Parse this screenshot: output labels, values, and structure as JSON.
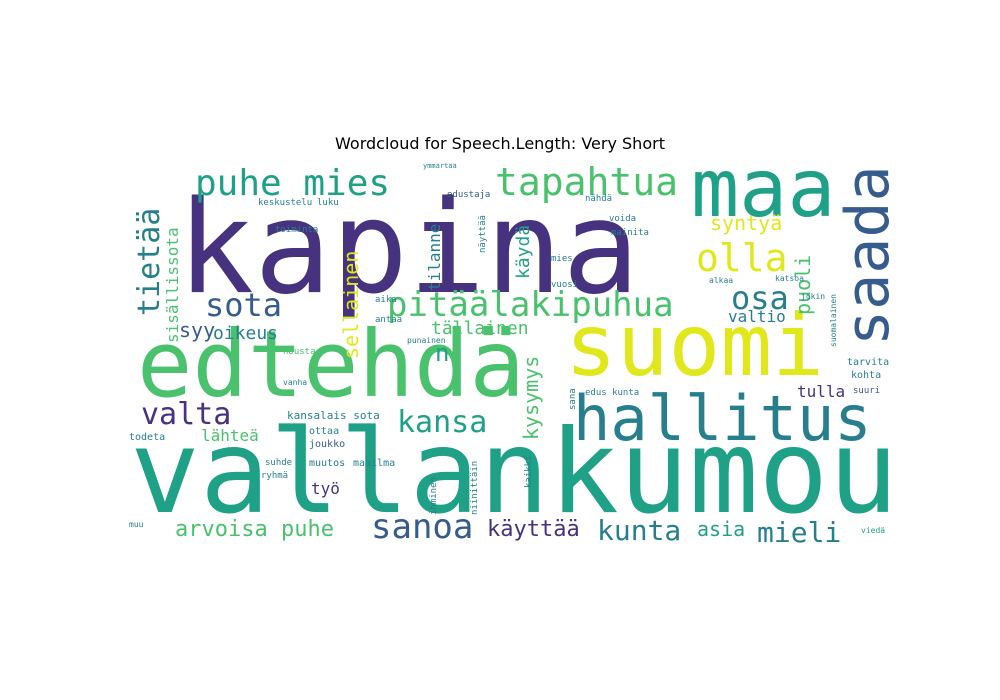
{
  "title": "Wordcloud for Speech.Length: Very Short",
  "palette": {
    "dark_purple": "#46327e",
    "slate_blue": "#365c8d",
    "teal": "#277f8e",
    "sea_green": "#1fa187",
    "green": "#4ac16d",
    "lime": "#a0da39",
    "yellow": "#e0e81c"
  },
  "words": [
    {
      "text": "kapina"
    },
    {
      "text": "vallankumou"
    },
    {
      "text": "edtehdä"
    },
    {
      "text": "suomi"
    },
    {
      "text": "maa"
    },
    {
      "text": "saada"
    },
    {
      "text": "hallitus"
    },
    {
      "text": "puhe mies"
    },
    {
      "text": "tapahtua"
    },
    {
      "text": "olla"
    },
    {
      "text": "pitäälakipuhua"
    },
    {
      "text": "sota"
    },
    {
      "text": "osa"
    },
    {
      "text": "tietää"
    },
    {
      "text": "kansa"
    },
    {
      "text": "valta"
    },
    {
      "text": "sanoa"
    },
    {
      "text": "kunta"
    },
    {
      "text": "mieli"
    },
    {
      "text": "käyttää"
    },
    {
      "text": "arvoisa puhe"
    },
    {
      "text": "asia"
    },
    {
      "text": "syntyä"
    },
    {
      "text": "puoli"
    },
    {
      "text": "valtio"
    },
    {
      "text": "sisällissota"
    },
    {
      "text": "sellainen"
    },
    {
      "text": "tällainen"
    },
    {
      "text": "kysymys"
    },
    {
      "text": "käydä"
    },
    {
      "text": "tilanne"
    },
    {
      "text": "oikeus"
    },
    {
      "text": "syy"
    },
    {
      "text": "n"
    },
    {
      "text": "lähteä"
    },
    {
      "text": "työ"
    },
    {
      "text": "tulla"
    },
    {
      "text": "kansalais sota"
    },
    {
      "text": "joukko"
    },
    {
      "text": "muutos"
    },
    {
      "text": "maailma"
    },
    {
      "text": "ryhmä"
    },
    {
      "text": "suhde"
    },
    {
      "text": "todeta"
    },
    {
      "text": "kohta"
    },
    {
      "text": "tarvita"
    },
    {
      "text": "suuri"
    },
    {
      "text": "edus kunta"
    },
    {
      "text": "sana"
    },
    {
      "text": "ottaa"
    },
    {
      "text": "vuosi"
    },
    {
      "text": "mies"
    },
    {
      "text": "mainita"
    },
    {
      "text": "edustaja"
    },
    {
      "text": "nähdä"
    },
    {
      "text": "voida"
    },
    {
      "text": "näyttää"
    },
    {
      "text": "toiminta"
    },
    {
      "text": "keskustelu"
    },
    {
      "text": "luku"
    },
    {
      "text": "aika"
    },
    {
      "text": "antaa"
    },
    {
      "text": "nousta"
    },
    {
      "text": "punainen"
    },
    {
      "text": "vanha"
    },
    {
      "text": "ihminen"
    },
    {
      "text": "niinittäin"
    },
    {
      "text": "kaikki"
    },
    {
      "text": "muu"
    },
    {
      "text": "viedä"
    },
    {
      "text": "alkaa"
    },
    {
      "text": "katsoa"
    },
    {
      "text": "ymmärtää"
    },
    {
      "text": "suomalainen"
    },
    {
      "text": "jokin"
    }
  ]
}
